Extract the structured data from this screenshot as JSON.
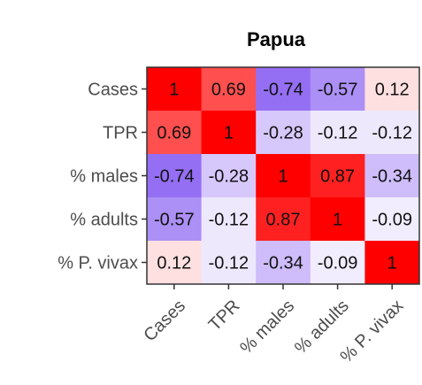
{
  "chart_data": {
    "type": "heatmap",
    "title": "Papua",
    "rows": [
      "Cases",
      "TPR",
      "% males",
      "% adults",
      "% P. vivax"
    ],
    "columns": [
      "Cases",
      "TPR",
      "% males",
      "% adults",
      "% P. vivax"
    ],
    "values": [
      [
        1,
        0.69,
        -0.74,
        -0.57,
        0.12
      ],
      [
        0.69,
        1,
        -0.28,
        -0.12,
        -0.12
      ],
      [
        -0.74,
        -0.28,
        1,
        0.87,
        -0.34
      ],
      [
        -0.57,
        -0.12,
        0.87,
        1,
        -0.09
      ],
      [
        0.12,
        -0.12,
        -0.34,
        -0.09,
        1
      ]
    ],
    "value_labels": [
      [
        "1",
        "0.69",
        "-0.74",
        "-0.57",
        "0.12"
      ],
      [
        "0.69",
        "1",
        "-0.28",
        "-0.12",
        "-0.12"
      ],
      [
        "-0.74",
        "-0.28",
        "1",
        "0.87",
        "-0.34"
      ],
      [
        "-0.57",
        "-0.12",
        "0.87",
        "1",
        "-0.09"
      ],
      [
        "0.12",
        "-0.12",
        "-0.34",
        "-0.09",
        "1"
      ]
    ],
    "color_scale": {
      "min": -1,
      "mid": 0,
      "max": 1,
      "low_color": "#6e3cf0",
      "mid_color": "#ffffff",
      "high_color": "#ff0000"
    },
    "x_tick_rotation": "45 degrees",
    "legend": "none",
    "grid": false
  }
}
